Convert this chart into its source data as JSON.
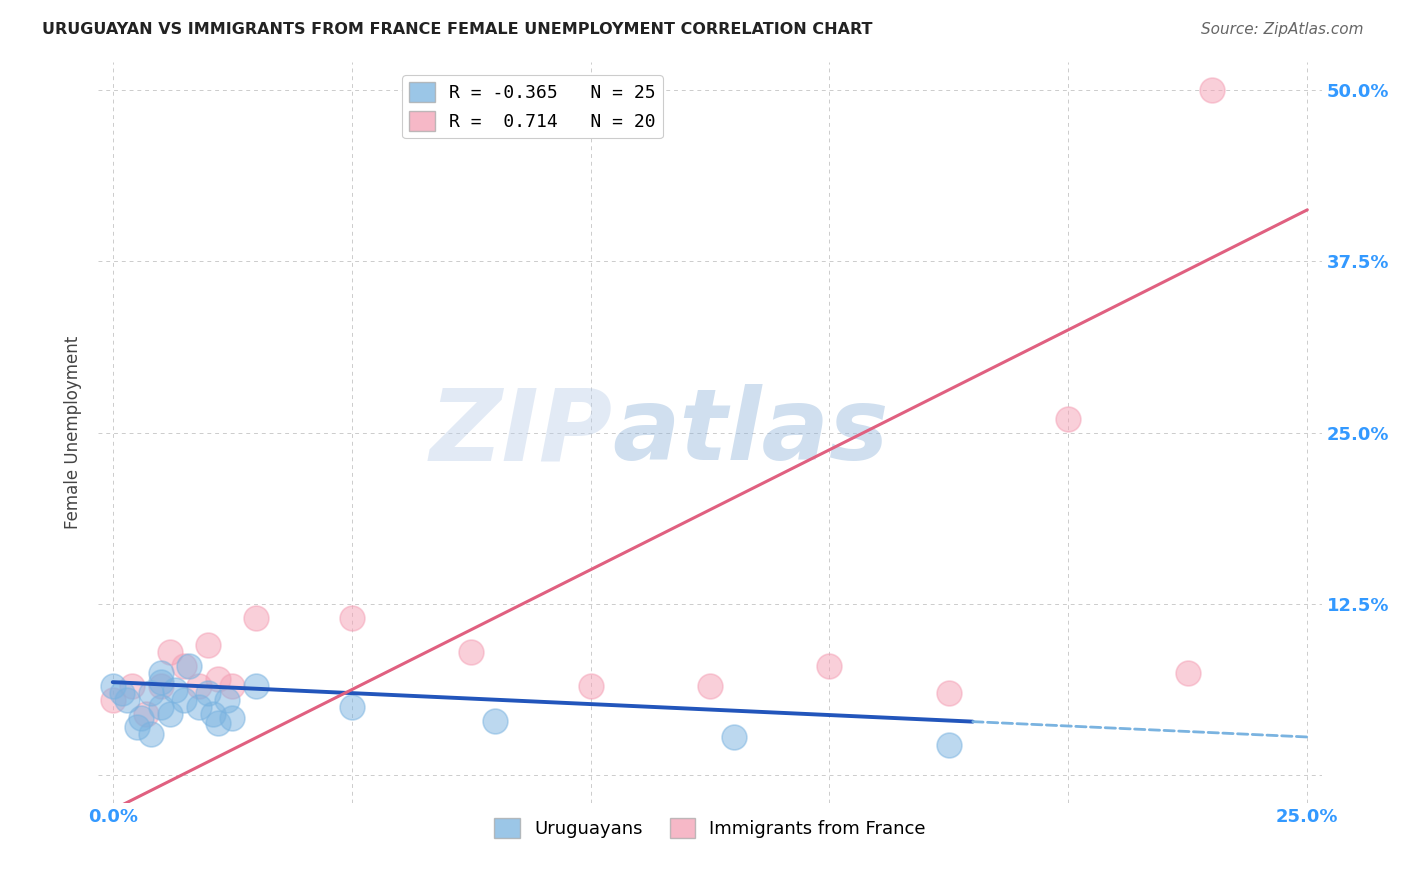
{
  "title": "URUGUAYAN VS IMMIGRANTS FROM FRANCE FEMALE UNEMPLOYMENT CORRELATION CHART",
  "source": "Source: ZipAtlas.com",
  "ylabel": "Female Unemployment",
  "xlim": [
    0.0,
    0.25
  ],
  "ylim": [
    -0.02,
    0.52
  ],
  "xtick_positions": [
    0.0,
    0.05,
    0.1,
    0.15,
    0.2,
    0.25
  ],
  "xtick_labels": [
    "0.0%",
    "",
    "",
    "",
    "",
    "25.0%"
  ],
  "ytick_positions": [
    0.0,
    0.125,
    0.25,
    0.375,
    0.5
  ],
  "ytick_labels": [
    "",
    "12.5%",
    "25.0%",
    "37.5%",
    "50.0%"
  ],
  "series_uruguayan": {
    "color": "#7ab3e0",
    "R": -0.365,
    "N": 25,
    "points_x": [
      0.0,
      0.002,
      0.003,
      0.005,
      0.006,
      0.008,
      0.008,
      0.01,
      0.01,
      0.01,
      0.012,
      0.013,
      0.015,
      0.016,
      0.018,
      0.02,
      0.021,
      0.022,
      0.024,
      0.025,
      0.03,
      0.05,
      0.08,
      0.13,
      0.175
    ],
    "points_y": [
      0.065,
      0.06,
      0.055,
      0.035,
      0.042,
      0.03,
      0.06,
      0.068,
      0.05,
      0.075,
      0.045,
      0.062,
      0.055,
      0.08,
      0.05,
      0.06,
      0.045,
      0.038,
      0.055,
      0.042,
      0.065,
      0.05,
      0.04,
      0.028,
      0.022
    ],
    "line_slope": -0.16,
    "line_intercept": 0.068,
    "solid_to": 0.18
  },
  "series_france": {
    "color": "#f4a0b5",
    "R": 0.714,
    "N": 20,
    "points_x": [
      0.0,
      0.004,
      0.007,
      0.01,
      0.012,
      0.015,
      0.018,
      0.02,
      0.022,
      0.025,
      0.03,
      0.05,
      0.075,
      0.1,
      0.125,
      0.15,
      0.175,
      0.2,
      0.225,
      0.23
    ],
    "points_y": [
      0.055,
      0.065,
      0.045,
      0.065,
      0.09,
      0.08,
      0.065,
      0.095,
      0.07,
      0.065,
      0.115,
      0.115,
      0.09,
      0.065,
      0.065,
      0.08,
      0.06,
      0.26,
      0.075,
      0.5
    ],
    "line_slope": 1.75,
    "line_intercept": -0.025
  },
  "watermark_zip": "ZIP",
  "watermark_atlas": "atlas",
  "background_color": "#ffffff",
  "grid_color": "#cccccc",
  "title_color": "#222222",
  "source_color": "#666666",
  "ylabel_color": "#444444",
  "tick_color": "#3399ff",
  "legend_upper_label_uru": "R = -0.365   N = 25",
  "legend_upper_label_fra": "R =  0.714   N = 20",
  "legend_bottom_label_uru": "Uruguayans",
  "legend_bottom_label_fra": "Immigrants from France"
}
